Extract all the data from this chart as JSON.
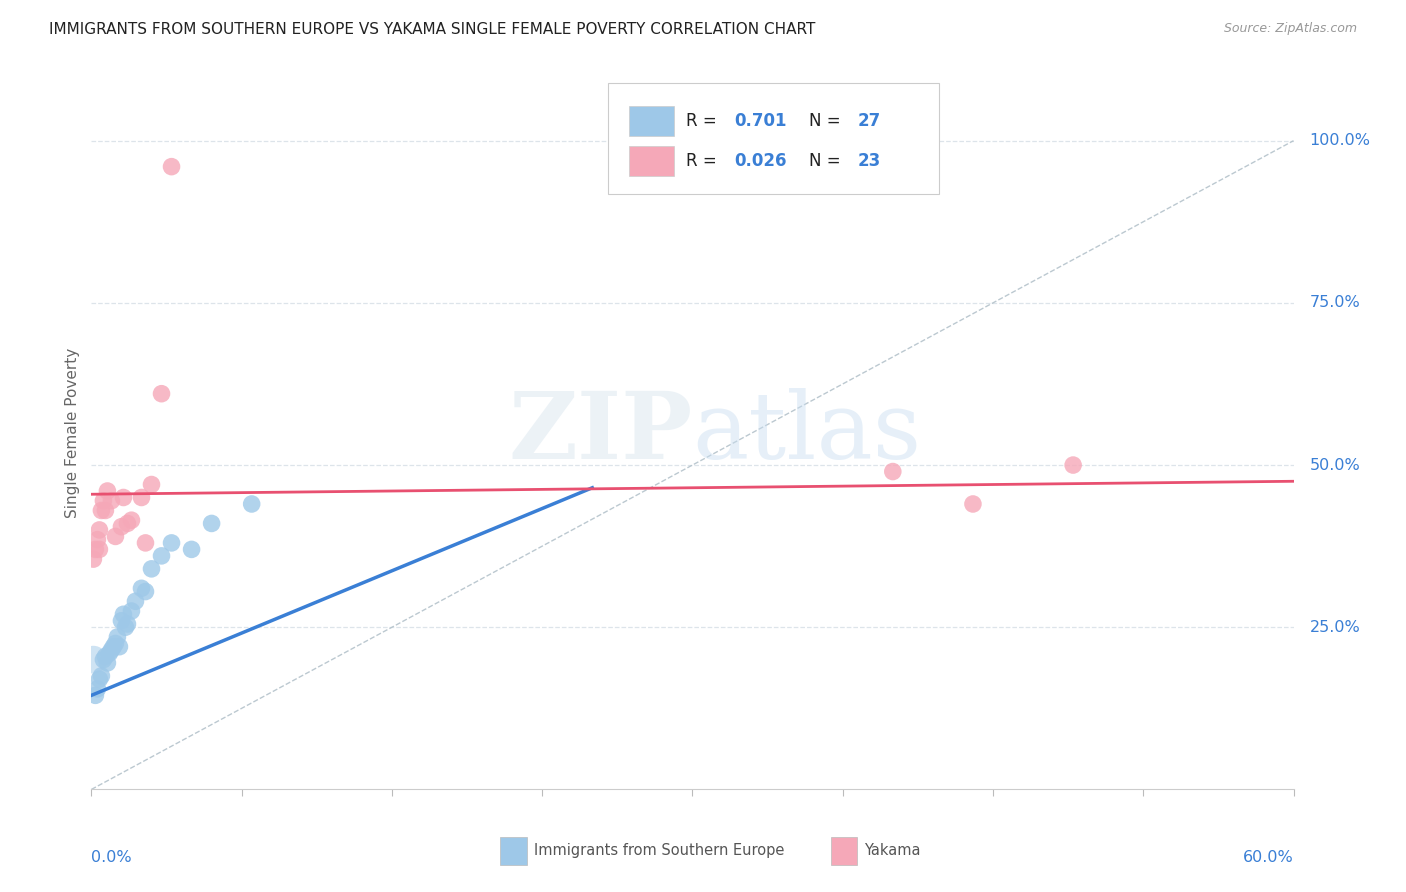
{
  "title": "IMMIGRANTS FROM SOUTHERN EUROPE VS YAKAMA SINGLE FEMALE POVERTY CORRELATION CHART",
  "source": "Source: ZipAtlas.com",
  "ylabel": "Single Female Poverty",
  "legend_label1": "Immigrants from Southern Europe",
  "legend_label2": "Yakama",
  "r1": "0.701",
  "n1": "27",
  "r2": "0.026",
  "n2": "23",
  "xmin": 0.0,
  "xmax": 0.6,
  "ymin": 0.0,
  "ymax": 1.1,
  "right_yticks": [
    0.25,
    0.5,
    0.75,
    1.0
  ],
  "right_ytick_labels": [
    "25.0%",
    "50.0%",
    "75.0%",
    "100.0%"
  ],
  "color_blue": "#9ec8e8",
  "color_pink": "#f5a8b8",
  "color_blue_line": "#3a7fd5",
  "color_pink_line": "#e85070",
  "color_diag": "#b0bfc8",
  "blue_dots_x": [
    0.002,
    0.003,
    0.004,
    0.005,
    0.006,
    0.007,
    0.008,
    0.009,
    0.01,
    0.011,
    0.012,
    0.013,
    0.014,
    0.015,
    0.016,
    0.017,
    0.018,
    0.02,
    0.022,
    0.025,
    0.027,
    0.03,
    0.035,
    0.04,
    0.05,
    0.06,
    0.08
  ],
  "blue_dots_y": [
    0.145,
    0.155,
    0.17,
    0.175,
    0.2,
    0.205,
    0.195,
    0.21,
    0.215,
    0.22,
    0.225,
    0.235,
    0.22,
    0.26,
    0.27,
    0.25,
    0.255,
    0.275,
    0.29,
    0.31,
    0.305,
    0.34,
    0.36,
    0.38,
    0.37,
    0.41,
    0.44
  ],
  "pink_dots_x": [
    0.001,
    0.002,
    0.003,
    0.004,
    0.004,
    0.005,
    0.006,
    0.007,
    0.008,
    0.01,
    0.012,
    0.015,
    0.016,
    0.018,
    0.02,
    0.025,
    0.027,
    0.03,
    0.035,
    0.04,
    0.4,
    0.44,
    0.49
  ],
  "pink_dots_y": [
    0.355,
    0.37,
    0.385,
    0.4,
    0.37,
    0.43,
    0.445,
    0.43,
    0.46,
    0.445,
    0.39,
    0.405,
    0.45,
    0.41,
    0.415,
    0.45,
    0.38,
    0.47,
    0.61,
    0.96,
    0.49,
    0.44,
    0.5
  ],
  "blue_line_x0": 0.0,
  "blue_line_y0": 0.145,
  "blue_line_x1": 0.25,
  "blue_line_y1": 0.465,
  "pink_line_x0": 0.0,
  "pink_line_y0": 0.455,
  "pink_line_x1": 0.6,
  "pink_line_y1": 0.475,
  "watermark": "ZIPatlas",
  "background_color": "#ffffff",
  "grid_color": "#dde4ea"
}
